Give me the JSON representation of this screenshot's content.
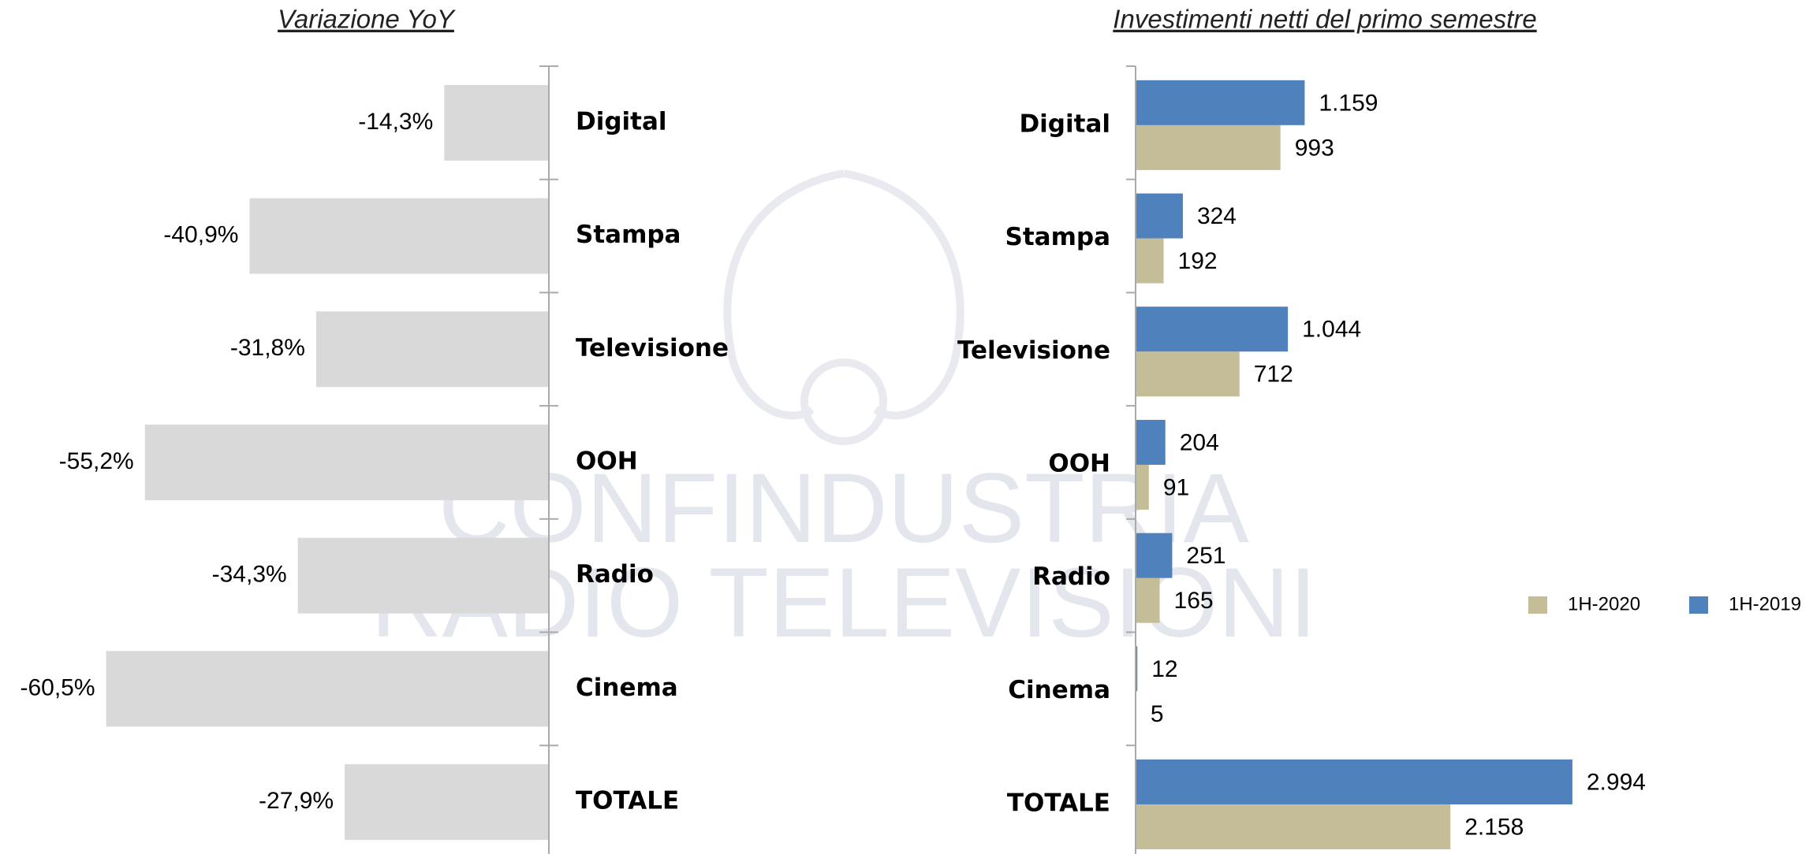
{
  "watermark": [
    "CONFINDUSTRIA",
    "RADIO TELEVISIONI"
  ],
  "chart_data": [
    {
      "type": "bar",
      "orientation": "horizontal",
      "title": "Variazione YoY",
      "categories": [
        "Digital",
        "Stampa",
        "Televisione",
        "OOH",
        "Radio",
        "Cinema",
        "TOTALE"
      ],
      "values": [
        -14.3,
        -40.9,
        -31.8,
        -55.2,
        -34.3,
        -60.5,
        -27.9
      ],
      "value_labels": [
        "-14,3%",
        "-40,9%",
        "-31,8%",
        "-55,2%",
        "-34,3%",
        "-60,5%",
        "-27,9%"
      ],
      "color": "#d9d9d9",
      "xlim": [
        -75,
        0
      ]
    },
    {
      "type": "grouped-bar",
      "orientation": "horizontal",
      "title": "Investimenti netti del primo semestre",
      "categories": [
        "Digital",
        "Stampa",
        "Televisione",
        "OOH",
        "Radio",
        "Cinema",
        "TOTALE"
      ],
      "series": [
        {
          "name": "1H-2020",
          "color": "#c4bd97",
          "values": [
            993,
            192,
            712,
            91,
            165,
            5,
            2158
          ],
          "value_labels": [
            "993",
            "192",
            "712",
            "91",
            "165",
            "5",
            "2.158"
          ]
        },
        {
          "name": "1H-2019",
          "color": "#4f81bd",
          "values": [
            1159,
            324,
            1044,
            204,
            251,
            12,
            2994
          ],
          "value_labels": [
            "1.159",
            "324",
            "1.044",
            "204",
            "251",
            "12",
            "2.994"
          ]
        }
      ],
      "xlim": [
        0,
        4000
      ],
      "legend": "right"
    }
  ]
}
